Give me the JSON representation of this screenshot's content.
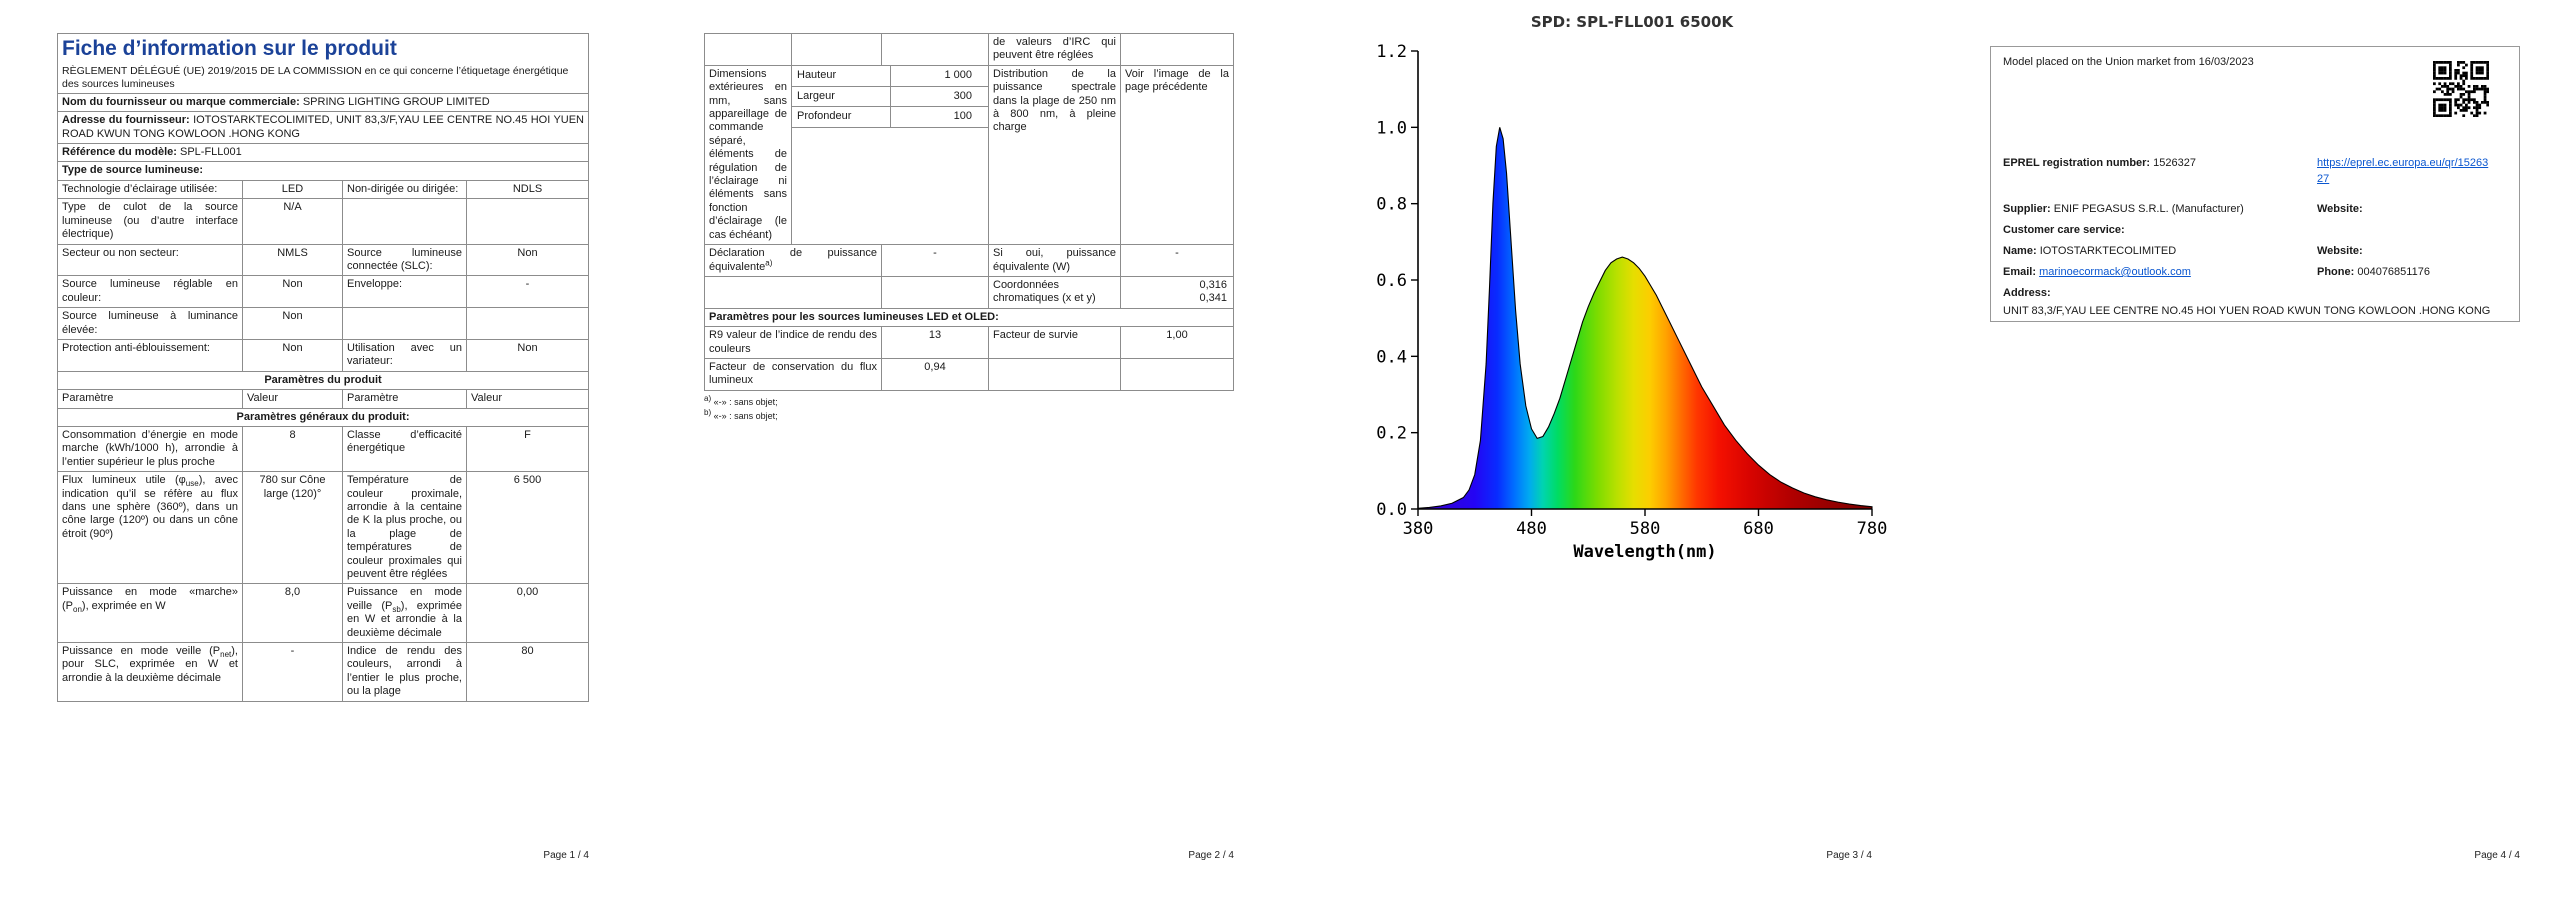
{
  "page1": {
    "title": "Fiche d’information sur le produit",
    "subtitle": "RÈGLEMENT DÉLÉGUÉ (UE) 2019/2015 DE LA COMMISSION en ce qui concerne l’étiquetage énergétique des sources lumineuses",
    "supplier_name_label": "Nom du fournisseur ou marque commerciale:",
    "supplier_name_value": "SPRING LIGHTING GROUP LIMITED",
    "supplier_address_label": "Adresse du fournisseur:",
    "supplier_address_value": "IOTOSTARKTECOLIMITED, UNIT 83,3/F,YAU LEE CENTRE NO.45 HOI YUEN ROAD KWUN TONG KOWLOON .HONG KONG",
    "model_ref_label": "Référence du modèle:",
    "model_ref_value": "SPL-FLL001",
    "source_type_label": "Type de source lumineuse:",
    "source_rows": [
      [
        "Technologie d’éclairage utilisée:",
        "LED",
        "Non-dirigée ou dirigée:",
        "NDLS"
      ],
      [
        "Type de culot de la source lumineuse (ou d’autre interface électrique)",
        "N/A",
        "",
        ""
      ],
      [
        "Secteur ou non secteur:",
        "NMLS",
        "Source lumineuse connectée (SLC):",
        "Non"
      ],
      [
        "Source lumineuse réglable en couleur:",
        "Non",
        "Enveloppe:",
        "-"
      ],
      [
        "Source lumineuse à luminance élevée:",
        "Non",
        "",
        ""
      ],
      [
        "Protection anti-éblouissement:",
        "Non",
        "Utilisation avec un variateur:",
        "Non"
      ]
    ],
    "product_params_header": "Paramètres du produit",
    "col_headers": [
      "Paramètre",
      "Valeur",
      "Paramètre",
      "Valeur"
    ],
    "general_params_header": "Paramètres généraux du produit:",
    "param_rows": [
      [
        "Consommation d’énergie en mode marche (kWh/1000 h), arrondie à l’entier supérieur le plus proche",
        "8",
        "Classe d’efficacité énergétique",
        "F"
      ],
      [
        "Flux lumineux utile (φ<sub>use</sub>), avec indication qu’il se réfère au flux dans une sphère (360º), dans un cône large (120º) ou dans un cône étroit (90º)",
        "780 sur Cône large (120)°",
        "Température de couleur proximale, arrondie à la centaine de K la plus proche, ou la plage de températures de couleur proximales qui peuvent être réglées",
        "6 500"
      ],
      [
        "Puissance en mode «marche» (P<sub>on</sub>), exprimée en W",
        "8,0",
        "Puissance en mode veille (P<sub>sb</sub>), exprimée en W et arrondie à la deuxième décimale",
        "0,00"
      ],
      [
        "Puissance en mode veille (P<sub>net</sub>), pour SLC, exprimée en W et arrondie à la deuxième décimale",
        "-",
        "Indice de rendu des couleurs, arrondi à l’entier le plus proche, ou la plage",
        "80"
      ]
    ],
    "footer": "Page 1 / 4"
  },
  "page2": {
    "irc_continuation": "de valeurs d’IRC qui peuvent être réglées",
    "dims_label": "Dimensions extérieures en mm, sans appareillage de commande séparé, éléments de régulation de l’éclairage ni éléments sans fonction d’éclairage (le cas échéant)",
    "dims": [
      [
        "Hauteur",
        "1 000"
      ],
      [
        "Largeur",
        "300"
      ],
      [
        "Profondeur",
        "100"
      ]
    ],
    "spd_label": "Distribution de la puissance spectrale dans la plage de 250 nm à 800 nm, à pleine charge",
    "spd_value": "Voir l’image de la page précédente",
    "equiv_label": "Déclaration de puissance équivalente<sup>a)</sup>",
    "equiv_value": "-",
    "si_oui_label": "Si oui, puissance équivalente (W)",
    "si_oui_value": "-",
    "chroma_label": "Coordonnées chromatiques (x et y)",
    "chroma_value": "0,316<br>0,341",
    "led_oled_header": "Paramètres pour les sources lumineuses LED et OLED:",
    "r9_label": "R9 valeur de l’indice de rendu des couleurs",
    "r9_value": "13",
    "survival_label": "Facteur de survie",
    "survival_value": "1,00",
    "lumen_maintenance_label": "Facteur de conservation du flux lumineux",
    "lumen_maintenance_value": "0,94",
    "footnotes": [
      "<sup>a)</sup> «-» : sans objet;",
      "<sup>b)</sup> «-» : sans objet;"
    ],
    "footer": "Page 2 / 4"
  },
  "page3": {
    "footer": "Page 3 / 4"
  },
  "chart_data": {
    "type": "area",
    "clipped_title": "SPD: SPL-FLL001 6500K",
    "xlabel": "Wavelength(nm)",
    "ylabel": "",
    "xlim": [
      380,
      780
    ],
    "ylim": [
      0,
      1.2
    ],
    "x_ticks": [
      380,
      480,
      580,
      680,
      780
    ],
    "y_ticks": [
      0,
      0.2,
      0.4,
      0.6,
      0.8,
      1,
      1.2
    ],
    "grid": false,
    "legend": false,
    "line_color": "#000000",
    "x": [
      380,
      390,
      400,
      410,
      420,
      425,
      430,
      435,
      440,
      443,
      446,
      449,
      452,
      455,
      458,
      462,
      466,
      470,
      475,
      480,
      485,
      490,
      495,
      500,
      505,
      510,
      515,
      520,
      525,
      530,
      535,
      540,
      545,
      550,
      555,
      560,
      565,
      570,
      575,
      580,
      585,
      590,
      595,
      600,
      610,
      620,
      630,
      640,
      650,
      660,
      670,
      680,
      690,
      700,
      710,
      720,
      730,
      740,
      750,
      760,
      770,
      780
    ],
    "y": [
      0.002,
      0.004,
      0.008,
      0.015,
      0.03,
      0.05,
      0.09,
      0.18,
      0.38,
      0.58,
      0.8,
      0.95,
      1.0,
      0.97,
      0.88,
      0.7,
      0.52,
      0.38,
      0.27,
      0.21,
      0.185,
      0.19,
      0.215,
      0.25,
      0.29,
      0.34,
      0.39,
      0.44,
      0.49,
      0.53,
      0.565,
      0.595,
      0.625,
      0.645,
      0.655,
      0.66,
      0.655,
      0.645,
      0.63,
      0.61,
      0.585,
      0.56,
      0.53,
      0.5,
      0.44,
      0.38,
      0.32,
      0.27,
      0.22,
      0.18,
      0.145,
      0.115,
      0.09,
      0.07,
      0.055,
      0.042,
      0.032,
      0.024,
      0.018,
      0.013,
      0.009,
      0.006
    ],
    "gradient_stops": [
      [
        380,
        "#3a00c8"
      ],
      [
        430,
        "#2404f4"
      ],
      [
        450,
        "#082cff"
      ],
      [
        465,
        "#0070ff"
      ],
      [
        478,
        "#00aaf0"
      ],
      [
        490,
        "#00d4b0"
      ],
      [
        503,
        "#00dc64"
      ],
      [
        518,
        "#2cd818"
      ],
      [
        538,
        "#7cdc00"
      ],
      [
        555,
        "#b8e000"
      ],
      [
        570,
        "#e6de00"
      ],
      [
        584,
        "#fcce00"
      ],
      [
        598,
        "#ffa400"
      ],
      [
        612,
        "#ff6c00"
      ],
      [
        626,
        "#ff3600"
      ],
      [
        645,
        "#f41000"
      ],
      [
        672,
        "#d80400"
      ],
      [
        710,
        "#b00000"
      ],
      [
        780,
        "#7a0000"
      ]
    ]
  },
  "page4": {
    "market_text": "Model placed on the Union market from 16/03/2023",
    "eprel_label": "EPREL registration number:",
    "eprel_value": "1526327",
    "eprel_link": "https://eprel.ec.europa.eu/qr/1526327",
    "supplier_label": "Supplier:",
    "supplier_value": "ENIF PEGASUS S.R.L. (Manufacturer)",
    "website_label": "Website:",
    "website_label2": "Website:",
    "customer_care_label": "Customer care service:",
    "name_label": "Name:",
    "name_value": "IOTOSTARKTECOLIMITED",
    "email_label": "Email:",
    "email_value": "marinoecormack@outlook.com",
    "phone_label": "Phone:",
    "phone_value": "004076851176",
    "address_label": "Address:",
    "address_value": "UNIT 83,3/F,YAU LEE CENTRE NO.45 HOI YUEN ROAD KWUN TONG KOWLOON .HONG KONG",
    "footer": "Page 4 / 4"
  }
}
